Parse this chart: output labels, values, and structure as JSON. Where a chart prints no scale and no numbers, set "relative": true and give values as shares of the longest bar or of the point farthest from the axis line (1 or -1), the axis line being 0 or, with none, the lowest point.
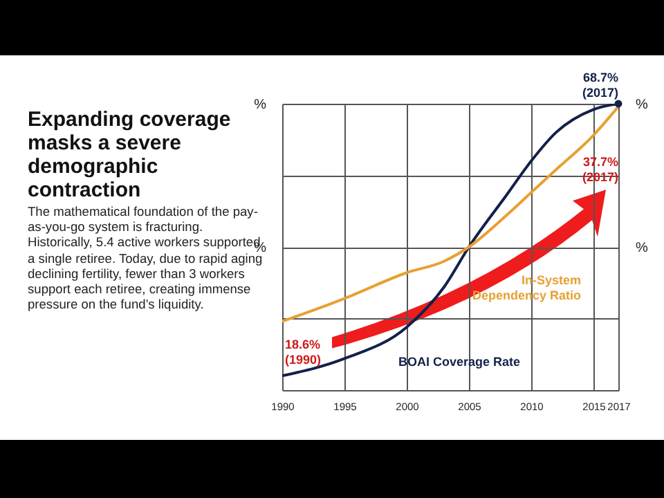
{
  "chart_data": {
    "type": "line",
    "title": "Expanding coverage masks a severe demographic contraction",
    "subtitle": "The mathematical foundation of the pay-as-you-go system is fracturing. Historically, 5.4 active workers supported a single retiree. Today, due to rapid aging declining fertility, fewer than 3 workers support each retiree, creating immense pressure on the fund’s liquidity.",
    "ylabel": "%",
    "y2label": "%",
    "relative": true,
    "x": [
      1990,
      1995,
      2000,
      2003,
      2005,
      2008,
      2010,
      2012,
      2015,
      2017
    ],
    "xlim": [
      1990,
      2017
    ],
    "xticks": [
      1990,
      1995,
      2000,
      2005,
      2010,
      2015,
      2017
    ],
    "series": [
      {
        "name": "BOAI Coverage Rate",
        "color": "#13204a",
        "values": [
          0.05,
          0.11,
          0.22,
          0.36,
          0.5,
          0.68,
          0.8,
          0.9,
          0.98,
          1
        ]
      },
      {
        "name": "In-System Dependency Ratio",
        "color": "#e8a033",
        "values": [
          0.24,
          0.32,
          0.41,
          0.45,
          0.5,
          0.61,
          0.69,
          0.77,
          0.89,
          0.99
        ]
      }
    ],
    "annotations": [
      "68.7% (2017)",
      "37.7% (2017)",
      "18.6% (1990)"
    ],
    "grid": true
  }
}
